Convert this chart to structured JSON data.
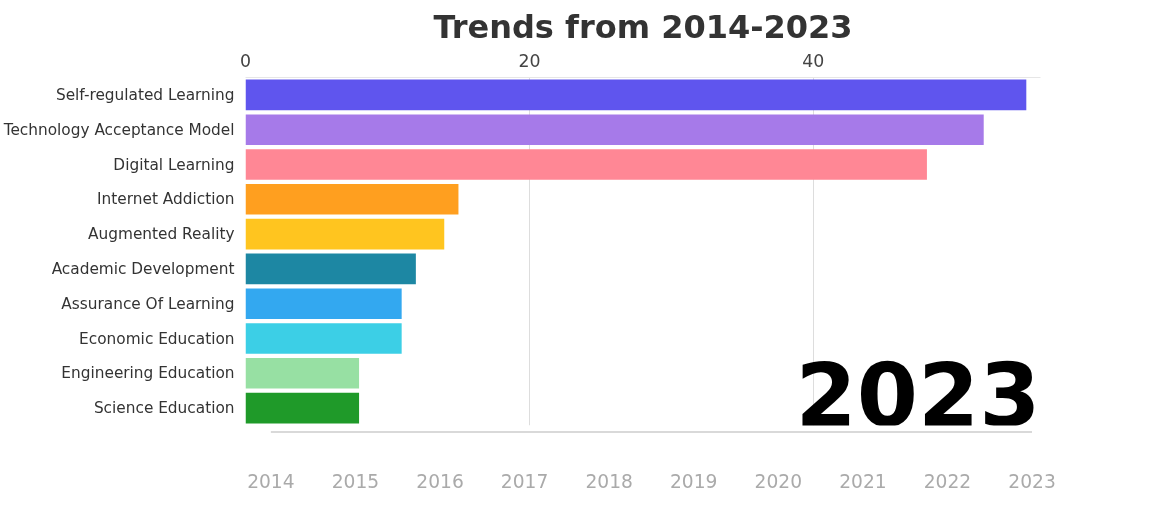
{
  "chart_data": {
    "type": "bar",
    "orientation": "horizontal",
    "title": "Trends from 2014-2023",
    "categories": [
      "Self-regulated Learning",
      "Technology Acceptance Model",
      "Digital Learning",
      "Internet Addiction",
      "Augmented Reality",
      "Academic Development",
      "Assurance Of Learning",
      "Economic Education",
      "Engineering Education",
      "Science Education"
    ],
    "values": [
      55,
      52,
      48,
      15,
      14,
      12,
      11,
      11,
      8,
      8
    ],
    "colors": [
      "#5f55ee",
      "#a67ae9",
      "#ff8795",
      "#ff9f1f",
      "#ffc51f",
      "#1d87a3",
      "#33a8f0",
      "#3ccfe6",
      "#97e0a3",
      "#1f9a29"
    ],
    "xlim": [
      0,
      56
    ],
    "xticks": [
      0,
      20,
      40
    ],
    "grid": "x",
    "x2lim": [
      2014,
      2023
    ],
    "x2ticks": [
      2014,
      2015,
      2016,
      2017,
      2018,
      2019,
      2020,
      2021,
      2022,
      2023
    ],
    "annotations": [
      "2023"
    ]
  }
}
